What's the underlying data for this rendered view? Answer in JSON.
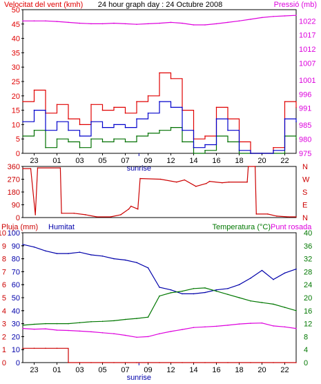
{
  "colors": {
    "wind_gust": "#e00000",
    "wind_avg": "#0000cc",
    "wind_low": "#007000",
    "pressure": "#dd00dd",
    "direction": "#cc0000",
    "rain": "#cc0000",
    "humidity": "#0000aa",
    "temperature": "#007700",
    "dewpoint": "#dd00dd",
    "axis_blue": "#0000aa"
  },
  "x_labels": [
    "23",
    "01",
    "03",
    "05",
    "07",
    "09",
    "12",
    "14",
    "16",
    "18",
    "20",
    "22"
  ],
  "sunrise_label": "sunrise",
  "chart_data": [
    {
      "type": "line",
      "title": "24 hour graph day : 24 Octubre 2008",
      "ylabel_left": "Velocitat del vent (kmh)",
      "ylabel_right": "Pressió (mb)",
      "ylim_left": [
        0,
        50
      ],
      "yticks_left": [
        "0",
        "5",
        "10",
        "15",
        "20",
        "25",
        "30",
        "35",
        "40",
        "45",
        "50"
      ],
      "ylim_right": [
        975,
        1026
      ],
      "yticks_right": [
        "975",
        "980",
        "985",
        "991",
        "996",
        "1001",
        "1007",
        "1012",
        "1017",
        "1022"
      ],
      "x": [
        0,
        1,
        2,
        3,
        4,
        5,
        6,
        7,
        8,
        9,
        10,
        11,
        12,
        13,
        14,
        15,
        16,
        17,
        18,
        19,
        20,
        21,
        22,
        23,
        24
      ],
      "series": [
        {
          "color_key": "wind_gust",
          "values": [
            18,
            22,
            14,
            17,
            12,
            10,
            17,
            15,
            16,
            14,
            18,
            20,
            28,
            26,
            15,
            5,
            6,
            16,
            12,
            4,
            0,
            0,
            2,
            18,
            16
          ]
        },
        {
          "color_key": "wind_avg",
          "values": [
            11,
            15,
            8,
            11,
            8,
            6,
            11,
            9,
            10,
            9,
            12,
            14,
            18,
            16,
            8,
            2,
            3,
            12,
            8,
            1,
            0,
            0,
            1,
            12,
            11
          ]
        },
        {
          "color_key": "wind_low",
          "values": [
            6,
            8,
            2,
            5,
            4,
            2,
            5,
            4,
            5,
            4,
            6,
            7,
            8,
            9,
            4,
            0,
            1,
            6,
            4,
            0,
            0,
            0,
            0,
            6,
            5
          ]
        },
        {
          "color_key": "pressure",
          "values": [
            1022,
            1022,
            1022,
            1021.8,
            1021.5,
            1021.2,
            1021,
            1021,
            1021.2,
            1021,
            1020.8,
            1021,
            1021.2,
            1021.5,
            1021.2,
            1020.6,
            1020.6,
            1021,
            1021.5,
            1022,
            1022.6,
            1023.2,
            1023.6,
            1023.8,
            1024
          ]
        }
      ]
    },
    {
      "type": "line",
      "yticks_left": [
        "0",
        "90",
        "180",
        "270",
        "360"
      ],
      "ylim_left": [
        0,
        360
      ],
      "yticks_right": [
        "N",
        "E",
        "S",
        "W",
        "N"
      ],
      "x": [
        0,
        0.7,
        1.1,
        1.3,
        3.3,
        3.4,
        4.5,
        5.5,
        6.5,
        7.7,
        8.6,
        9.3,
        9.5,
        10.1,
        10.3,
        12.1,
        13.5,
        14.2,
        15.2,
        16.1,
        16.4,
        17.5,
        18.1,
        19.7,
        19.8,
        20.4,
        20.5,
        21.5,
        22.3,
        23.3,
        24
      ],
      "series": [
        {
          "color_key": "direction",
          "values": [
            345,
            345,
            20,
            350,
            350,
            30,
            30,
            20,
            5,
            5,
            20,
            60,
            80,
            60,
            275,
            270,
            250,
            265,
            220,
            240,
            255,
            245,
            250,
            250,
            360,
            360,
            25,
            25,
            10,
            5,
            5
          ]
        }
      ]
    },
    {
      "type": "line",
      "ylabel_left": "Pluja (mm)",
      "ylabel_left2": "Humitat",
      "ylabel_right": "Temperatura (°C)",
      "ylabel_right2": "Punt rosada",
      "ylim_left": [
        0,
        100
      ],
      "yticks_rain": [
        "0",
        "1",
        "2",
        "3",
        "4",
        "5",
        "6",
        "7",
        "8",
        "9",
        "10"
      ],
      "yticks_humidity": [
        "0",
        "10",
        "20",
        "30",
        "40",
        "50",
        "60",
        "70",
        "80",
        "90",
        "100"
      ],
      "ylim_right": [
        0,
        40
      ],
      "yticks_right": [
        "0",
        "4",
        "8",
        "12",
        "16",
        "20",
        "24",
        "28",
        "32",
        "36",
        "40"
      ],
      "x": [
        0,
        1,
        2,
        3,
        4,
        5,
        6,
        7,
        8,
        9,
        10,
        11,
        12,
        13,
        14,
        15,
        16,
        17,
        18,
        19,
        20,
        21,
        22,
        23,
        24
      ],
      "series": [
        {
          "color_key": "rain",
          "values": [
            1.1,
            1.1,
            1.1,
            1.1,
            0,
            0,
            0,
            0,
            0,
            0,
            0,
            0,
            0,
            0,
            0,
            0,
            0,
            0,
            0,
            0,
            0,
            0,
            0,
            0,
            0
          ]
        },
        {
          "color_key": "humidity",
          "values": [
            91,
            89,
            86,
            84,
            84,
            85,
            83,
            82,
            80,
            79,
            77,
            73,
            58,
            56,
            53,
            53,
            54,
            56,
            57,
            60,
            65,
            71,
            64,
            69,
            72
          ]
        },
        {
          "color_key": "temperature",
          "values": [
            11.5,
            11.8,
            12,
            12,
            12,
            12.3,
            12.6,
            12.7,
            12.9,
            13.3,
            13.6,
            14,
            20.5,
            21.5,
            22,
            22.8,
            23,
            22,
            21,
            20,
            19,
            18.5,
            18,
            17,
            16
          ]
        },
        {
          "color_key": "dewpoint",
          "values": [
            10.5,
            10.3,
            10.4,
            10,
            9.9,
            9.7,
            9.5,
            9.2,
            8.9,
            8.4,
            7.8,
            8,
            8.9,
            9.6,
            10.2,
            10.8,
            11,
            11.2,
            11.5,
            11.9,
            12.1,
            12.2,
            11.3,
            11,
            10.5
          ]
        }
      ]
    }
  ]
}
